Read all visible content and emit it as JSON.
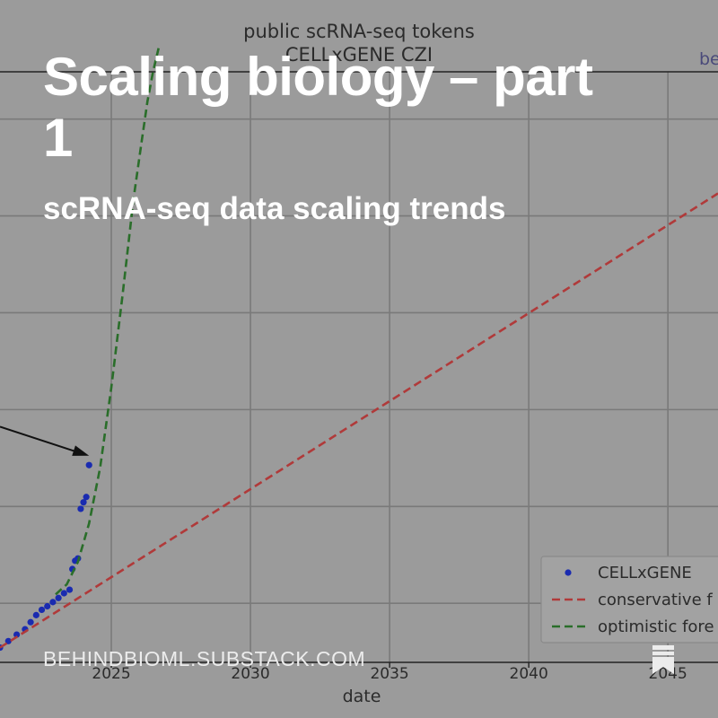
{
  "card": {
    "title": "Scaling biology – part 1",
    "subtitle": "scRNA-seq data scaling trends",
    "footer_url": "BEHINDBIOML.SUBSTACK.COM",
    "footer_icon": "bookmark-icon"
  },
  "chart_data": {
    "type": "line",
    "title": "public scRNA-seq tokens",
    "subtitle": "CELLxGENE CZI",
    "corner_label": "be",
    "xlabel": "date",
    "ylabel": "",
    "x_ticks": [
      "2025",
      "2030",
      "2035",
      "2040",
      "2045"
    ],
    "x_tick_values": [
      2025,
      2030,
      2035,
      2040,
      2045
    ],
    "xlim": [
      2021.0,
      2046.8
    ],
    "ylim": [
      0,
      100
    ],
    "grid": true,
    "legend": {
      "position": "bottom-right",
      "entries": [
        "CELLxGENE",
        "conservative f",
        "optimistic fore"
      ]
    },
    "series": [
      {
        "name": "CELLxGENE",
        "style": "points",
        "color": "#1a2bb0",
        "x": [
          2021.0,
          2021.3,
          2021.6,
          2021.9,
          2022.1,
          2022.3,
          2022.5,
          2022.7,
          2022.9,
          2023.1,
          2023.3,
          2023.5,
          2023.6,
          2023.7,
          2023.8,
          2023.9,
          2024.0,
          2024.1,
          2024.2
        ],
        "y": [
          2.5,
          3.6,
          4.7,
          5.6,
          6.8,
          8.0,
          8.9,
          9.5,
          10.2,
          10.9,
          11.7,
          12.3,
          15.8,
          17.2,
          17.6,
          26.0,
          27.1,
          28.0,
          33.4
        ]
      },
      {
        "name": "conservative f",
        "style": "dashed",
        "color": "#b03a3a",
        "x": [
          2021.0,
          2046.8
        ],
        "y": [
          2.5,
          79.4
        ]
      },
      {
        "name": "optimistic fore",
        "style": "dashed",
        "color": "#2a6e2a",
        "x": [
          2023.0,
          2023.4,
          2023.8,
          2024.2,
          2024.6,
          2025.0,
          2025.4,
          2025.8,
          2026.1,
          2026.3,
          2026.5,
          2026.7
        ],
        "y": [
          11.5,
          13.2,
          17.0,
          23.5,
          33.0,
          46.5,
          62.0,
          78.5,
          88.5,
          95.0,
          100.0,
          104.0
        ]
      }
    ],
    "annotation": {
      "type": "arrow",
      "from": [
        2021.0,
        39.9
      ],
      "to": [
        2024.2,
        35.0
      ]
    }
  }
}
